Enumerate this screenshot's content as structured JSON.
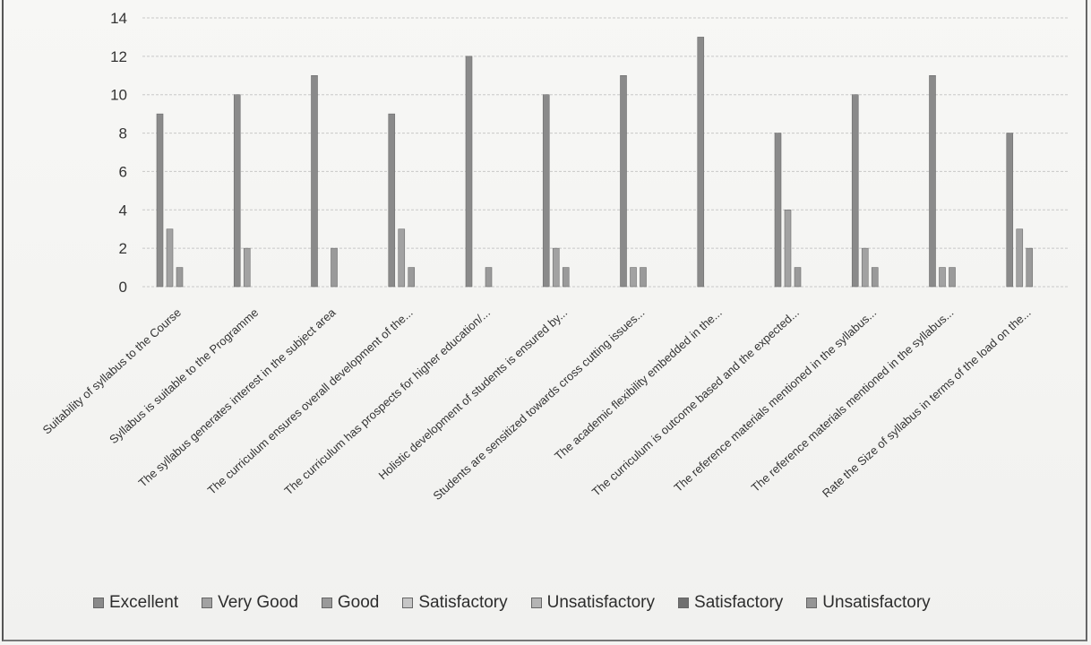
{
  "chart_data": {
    "type": "bar",
    "title": "",
    "xlabel": "",
    "ylabel": "",
    "ylim": [
      0,
      14
    ],
    "yticks": [
      "0",
      "2",
      "4",
      "6",
      "8",
      "10",
      "12",
      "14"
    ],
    "grid": true,
    "legend_position": "bottom",
    "categories": [
      "Suitability of syllabus to the Course",
      "Syllabus is suitable to the Programme",
      "The syllabus generates interest in the subject area",
      "The curriculum ensures overall development of the...",
      "The curriculum has prospects for higher education/...",
      "Holistic development of students is ensured by...",
      "Students are sensitized towards cross cutting issues...",
      "The academic flexibility embedded in the...",
      "The curriculum is outcome based and the expected...",
      "The reference materials mentioned in the syllabus...",
      "The reference materials mentioned in the syllabus...",
      "Rate the Size of syllabus in terms of the load on the..."
    ],
    "series": [
      {
        "name": "Excellent",
        "color": "#8a8a8a",
        "values": [
          9,
          10,
          11,
          9,
          12,
          10,
          11,
          13,
          8,
          10,
          11,
          8
        ]
      },
      {
        "name": "Very Good",
        "color": "#a2a2a2",
        "values": [
          3,
          2,
          0,
          3,
          0,
          2,
          1,
          0,
          4,
          2,
          1,
          3
        ]
      },
      {
        "name": "Good",
        "color": "#9a9a9a",
        "values": [
          1,
          0,
          2,
          1,
          1,
          1,
          1,
          0,
          1,
          1,
          1,
          2
        ]
      },
      {
        "name": "Satisfactory",
        "color": "#c6c6c6",
        "values": [
          0,
          0,
          0,
          0,
          0,
          0,
          0,
          0,
          0,
          0,
          0,
          0
        ]
      },
      {
        "name": "Unsatisfactory",
        "color": "#b4b4b4",
        "values": [
          0,
          0,
          0,
          0,
          0,
          0,
          0,
          0,
          0,
          0,
          0,
          0
        ]
      },
      {
        "name": "Satisfactory",
        "color": "#707070",
        "values": [
          0,
          0,
          0,
          0,
          0,
          0,
          0,
          0,
          0,
          0,
          0,
          0
        ]
      },
      {
        "name": "Unsatisfactory",
        "color": "#959595",
        "values": [
          0,
          0,
          0,
          0,
          0,
          0,
          0,
          0,
          0,
          0,
          0,
          0
        ]
      }
    ]
  }
}
